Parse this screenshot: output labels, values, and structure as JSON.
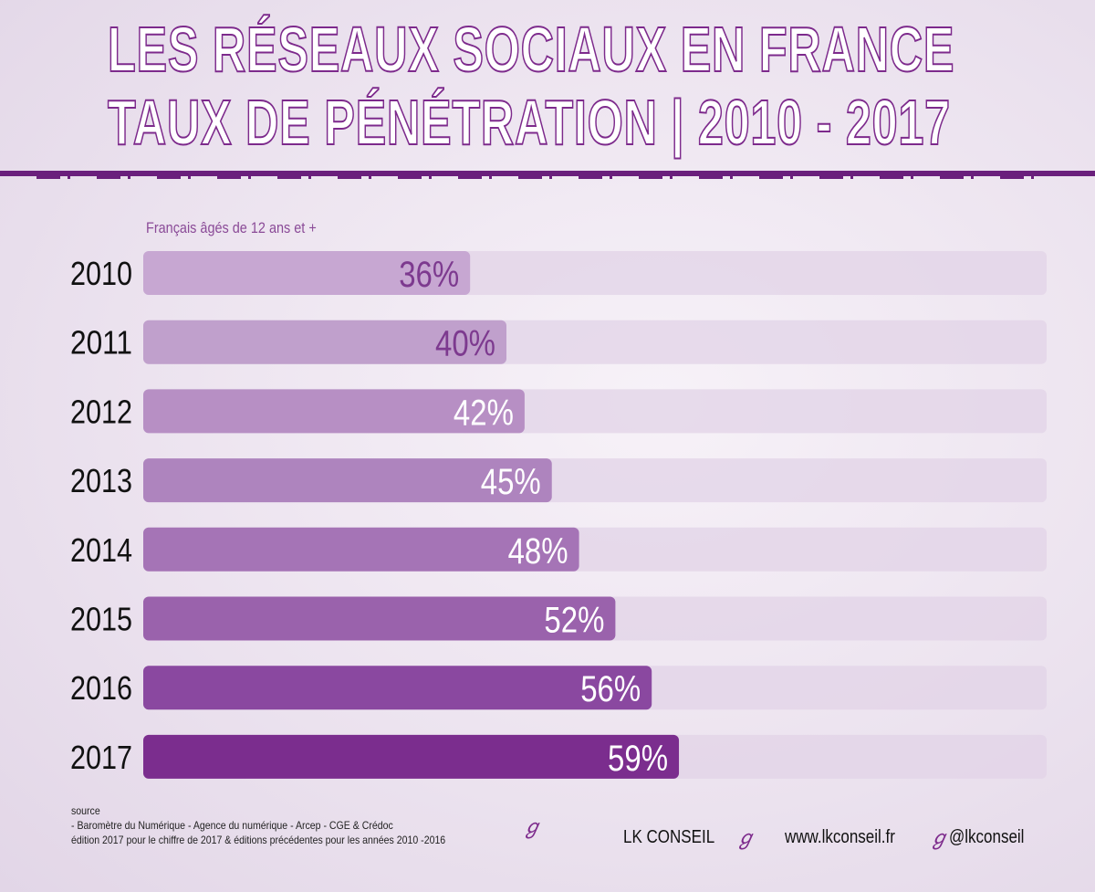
{
  "header": {
    "title_line1": "LES RÉSEAUX SOCIAUX EN FRANCE",
    "title_line2": "TAUX DE PÉNÉTRATION | 2010 - 2017"
  },
  "chart_data": {
    "type": "bar",
    "orientation": "horizontal",
    "subtitle": "Français âgés de 12 ans et +",
    "categories": [
      "2010",
      "2011",
      "2012",
      "2013",
      "2014",
      "2015",
      "2016",
      "2017"
    ],
    "values": [
      36,
      40,
      42,
      45,
      48,
      52,
      56,
      59
    ],
    "value_labels": [
      "36%",
      "40%",
      "42%",
      "45%",
      "48%",
      "52%",
      "56%",
      "59%"
    ],
    "unit": "%",
    "xlim": [
      0,
      100
    ],
    "grid": false,
    "colors": {
      "bars": [
        "#c7a7d2",
        "#c0a0cc",
        "#b78fc4",
        "#ae84be",
        "#a574b6",
        "#9a62ac",
        "#8a48a0",
        "#7b2d8e"
      ],
      "track": "#e2d3e7",
      "label_dark": "#7d3a8f",
      "label_light": "#ffffff"
    }
  },
  "footer": {
    "source_title": "source",
    "source_line1": "- Baromètre du Numérique - Agence du numérique - Arcep - CGE & Crédoc",
    "source_line2": "édition 2017 pour le chiffre de 2017 & éditions précédentes pour les années 2010 -2016",
    "brand": "LK CONSEIL",
    "website": "www.lkconseil.fr",
    "twitter": "@lkconseil"
  }
}
